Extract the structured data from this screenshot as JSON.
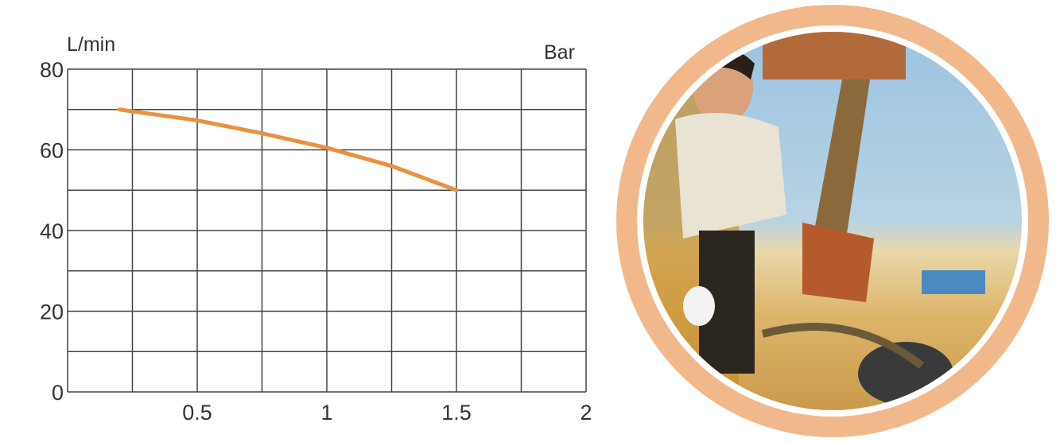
{
  "chart_data": {
    "type": "line",
    "title": "",
    "xlabel": "Bar",
    "ylabel": "L/min",
    "xlim": [
      0,
      2
    ],
    "ylim": [
      0,
      80
    ],
    "grid": true,
    "x_ticks": [
      "0.5",
      "1",
      "1.5",
      "2"
    ],
    "y_ticks": [
      "80",
      "60",
      "40",
      "20",
      "0"
    ],
    "series": [
      {
        "color": "#e8913e",
        "x": [
          0.2,
          0.5,
          0.75,
          1.0,
          1.25,
          1.5
        ],
        "y": [
          70,
          67.3,
          64.1,
          60.5,
          56,
          50
        ]
      }
    ]
  },
  "photo": {
    "ring_color": "#f1b98b",
    "description_icon": "worker-with-pump-photo"
  }
}
